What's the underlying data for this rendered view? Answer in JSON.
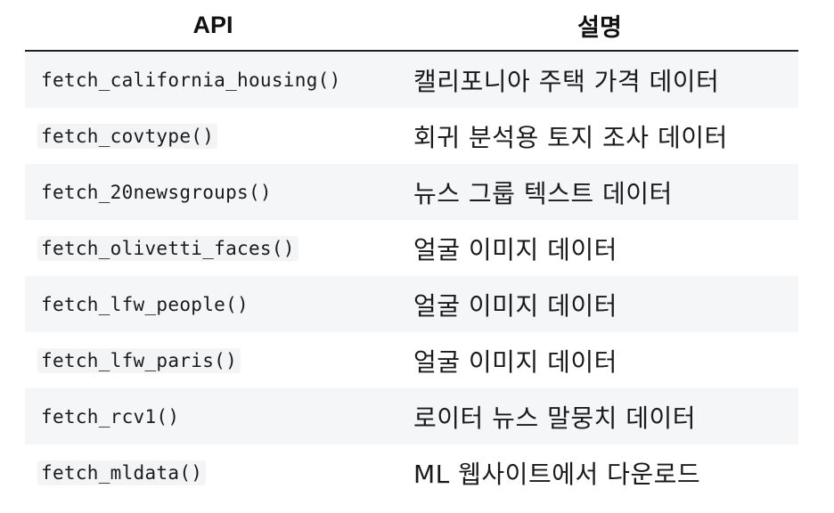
{
  "table": {
    "headers": {
      "api": "API",
      "description": "설명"
    },
    "rows": [
      {
        "api": "fetch_california_housing()",
        "description": "캘리포니아 주택 가격 데이터"
      },
      {
        "api": "fetch_covtype()",
        "description": "회귀 분석용 토지 조사 데이터"
      },
      {
        "api": "fetch_20newsgroups()",
        "description": "뉴스 그룹 텍스트 데이터"
      },
      {
        "api": "fetch_olivetti_faces()",
        "description": "얼굴 이미지 데이터"
      },
      {
        "api": "fetch_lfw_people()",
        "description": "얼굴 이미지 데이터"
      },
      {
        "api": "fetch_lfw_paris()",
        "description": "얼굴 이미지 데이터"
      },
      {
        "api": "fetch_rcv1()",
        "description": "로이터 뉴스 말뭉치 데이터"
      },
      {
        "api": "fetch_mldata()",
        "description": "ML 웹사이트에서 다운로드"
      }
    ]
  }
}
